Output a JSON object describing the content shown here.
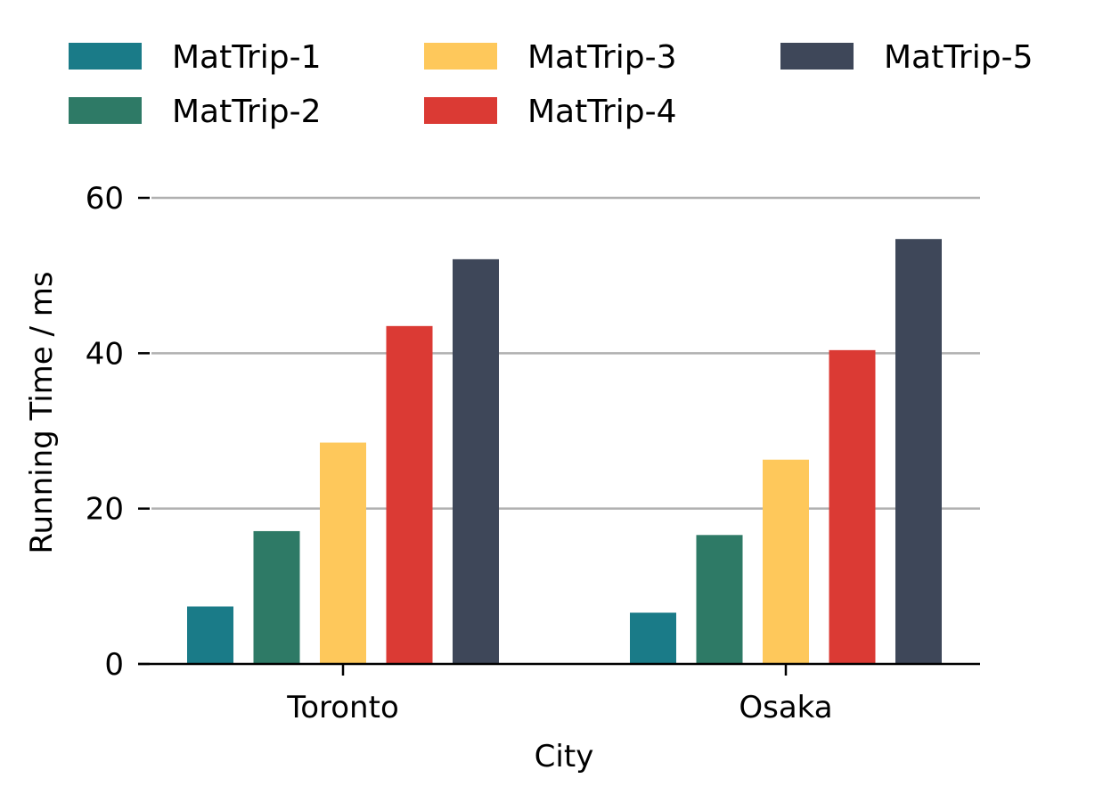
{
  "chart_data": {
    "type": "bar",
    "title": "",
    "xlabel": "City",
    "ylabel": "Running Time / ms",
    "categories": [
      "Toronto",
      "Osaka"
    ],
    "series": [
      {
        "name": "MatTrip-1",
        "color": "#1a7b88",
        "values": [
          7.4,
          6.6
        ]
      },
      {
        "name": "MatTrip-2",
        "color": "#2e7a66",
        "values": [
          17.1,
          16.6
        ]
      },
      {
        "name": "MatTrip-3",
        "color": "#fec85b",
        "values": [
          28.5,
          26.3
        ]
      },
      {
        "name": "MatTrip-4",
        "color": "#db3a34",
        "values": [
          43.5,
          40.4
        ]
      },
      {
        "name": "MatTrip-5",
        "color": "#3e4759",
        "values": [
          52.1,
          54.7
        ]
      }
    ],
    "ylim": [
      0,
      60
    ],
    "yticks": [
      0,
      20,
      40,
      60
    ],
    "grid": "horizontal",
    "grid_color": "#b0b0b0",
    "legend_placement": "top"
  }
}
